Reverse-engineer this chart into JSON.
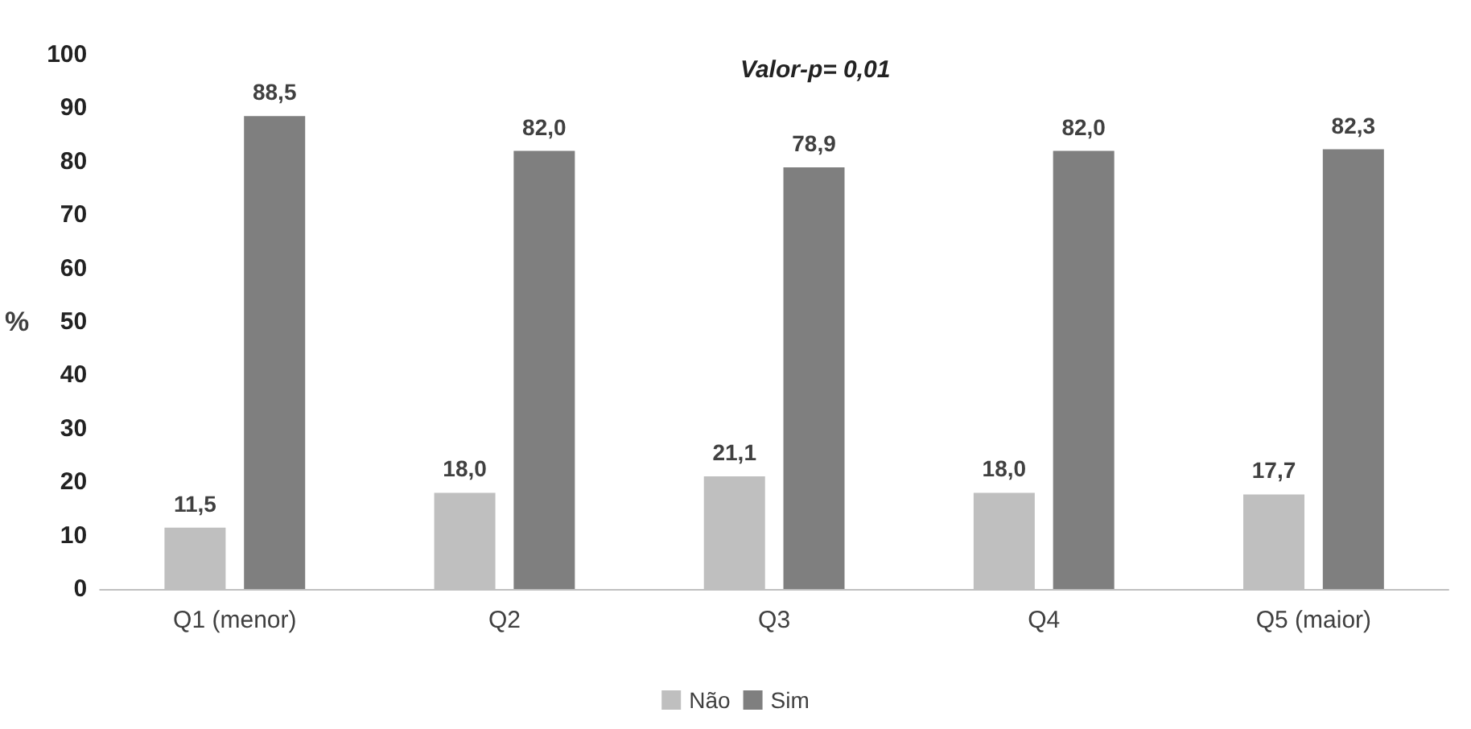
{
  "chart_data": {
    "type": "bar",
    "ylabel": "%",
    "annotations": [
      "Valor-p= 0,01"
    ],
    "categories": [
      "Q1 (menor)",
      "Q2",
      "Q3",
      "Q4",
      "Q5 (maior)"
    ],
    "series": [
      {
        "name": "Não",
        "color": "#bfbfbf",
        "values": [
          11.5,
          18.0,
          21.1,
          18.0,
          17.7
        ],
        "value_labels": [
          "11,5",
          "18,0",
          "21,1",
          "18,0",
          "17,7"
        ]
      },
      {
        "name": "Sim",
        "color": "#7f7f7f",
        "values": [
          88.5,
          82.0,
          78.9,
          82.0,
          82.3
        ],
        "value_labels": [
          "88,5",
          "82,0",
          "78,9",
          "82,0",
          "82,3"
        ]
      }
    ],
    "ylim": [
      0,
      100
    ],
    "yticks": [
      0,
      10,
      20,
      30,
      40,
      50,
      60,
      70,
      80,
      90,
      100
    ],
    "grid": false,
    "legend": "bottom"
  }
}
